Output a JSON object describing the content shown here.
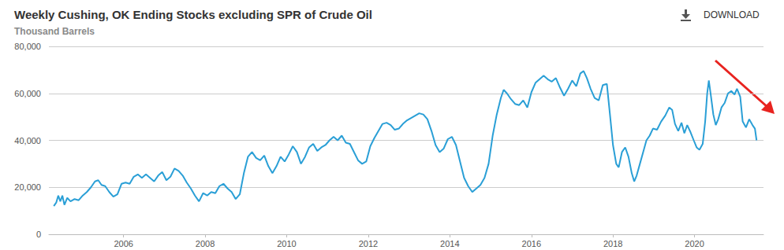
{
  "chart_data": {
    "type": "line",
    "title": "Weekly Cushing, OK Ending Stocks excluding SPR of Crude Oil",
    "subtitle": "Thousand Barrels",
    "annotations": [
      {
        "text": "DOWNLOAD"
      }
    ],
    "color": "#2a9fd6",
    "grid": true,
    "xlim": [
      2004.17,
      2021.69
    ],
    "xticks": [
      2006,
      2008,
      2010,
      2012,
      2014,
      2016,
      2018,
      2020
    ],
    "ylim": [
      0,
      80000
    ],
    "yticks": [
      0,
      {
        "value": 20000,
        "label": "20,000"
      },
      {
        "value": 40000,
        "label": "40,000"
      },
      {
        "value": 60000,
        "label": "60,000"
      },
      {
        "value": 80000,
        "label": "80,000"
      }
    ],
    "x": [
      2004.29,
      2004.35,
      2004.4,
      2004.45,
      2004.5,
      2004.55,
      2004.62,
      2004.7,
      2004.8,
      2004.9,
      2005.0,
      2005.1,
      2005.2,
      2005.3,
      2005.38,
      2005.46,
      2005.55,
      2005.65,
      2005.75,
      2005.85,
      2005.95,
      2006.05,
      2006.15,
      2006.25,
      2006.35,
      2006.45,
      2006.55,
      2006.65,
      2006.75,
      2006.85,
      2006.95,
      2007.05,
      2007.15,
      2007.25,
      2007.35,
      2007.45,
      2007.55,
      2007.65,
      2007.75,
      2007.85,
      2007.95,
      2008.05,
      2008.15,
      2008.25,
      2008.35,
      2008.45,
      2008.55,
      2008.65,
      2008.75,
      2008.85,
      2008.95,
      2009.05,
      2009.15,
      2009.25,
      2009.35,
      2009.45,
      2009.55,
      2009.65,
      2009.75,
      2009.85,
      2009.95,
      2010.05,
      2010.15,
      2010.25,
      2010.35,
      2010.45,
      2010.55,
      2010.65,
      2010.75,
      2010.85,
      2010.95,
      2011.05,
      2011.15,
      2011.25,
      2011.35,
      2011.45,
      2011.55,
      2011.65,
      2011.75,
      2011.85,
      2011.95,
      2012.05,
      2012.15,
      2012.25,
      2012.35,
      2012.45,
      2012.55,
      2012.65,
      2012.75,
      2012.85,
      2012.95,
      2013.05,
      2013.15,
      2013.25,
      2013.35,
      2013.45,
      2013.55,
      2013.65,
      2013.75,
      2013.85,
      2013.95,
      2014.05,
      2014.15,
      2014.25,
      2014.35,
      2014.45,
      2014.55,
      2014.65,
      2014.75,
      2014.85,
      2014.95,
      2015.05,
      2015.15,
      2015.25,
      2015.32,
      2015.4,
      2015.5,
      2015.6,
      2015.7,
      2015.8,
      2015.9,
      2016.0,
      2016.1,
      2016.2,
      2016.3,
      2016.4,
      2016.5,
      2016.6,
      2016.7,
      2016.8,
      2016.9,
      2017.0,
      2017.1,
      2017.2,
      2017.28,
      2017.36,
      2017.45,
      2017.55,
      2017.65,
      2017.75,
      2017.85,
      2017.92,
      2018.0,
      2018.08,
      2018.14,
      2018.22,
      2018.3,
      2018.38,
      2018.46,
      2018.52,
      2018.58,
      2018.66,
      2018.74,
      2018.82,
      2018.9,
      2018.98,
      2019.08,
      2019.18,
      2019.28,
      2019.38,
      2019.45,
      2019.52,
      2019.6,
      2019.68,
      2019.75,
      2019.82,
      2019.9,
      2019.98,
      2020.05,
      2020.12,
      2020.2,
      2020.26,
      2020.31,
      2020.35,
      2020.4,
      2020.46,
      2020.52,
      2020.58,
      2020.66,
      2020.74,
      2020.82,
      2020.9,
      2020.98,
      2021.04,
      2021.12,
      2021.18,
      2021.26,
      2021.34,
      2021.42,
      2021.48,
      2021.52
    ],
    "values": [
      12000,
      13500,
      16500,
      14000,
      16500,
      12500,
      15500,
      14000,
      15000,
      14500,
      16500,
      18000,
      20000,
      22500,
      23000,
      21000,
      20500,
      18000,
      16000,
      17000,
      21500,
      22000,
      21500,
      24500,
      25500,
      24000,
      25500,
      24000,
      22500,
      25000,
      26500,
      23000,
      24500,
      28000,
      27000,
      25000,
      22000,
      19500,
      16500,
      14000,
      17500,
      16500,
      18000,
      17500,
      20500,
      21500,
      19500,
      18000,
      15000,
      17000,
      26000,
      33000,
      35000,
      32500,
      31500,
      33500,
      29000,
      26000,
      29000,
      33000,
      31000,
      34000,
      37500,
      35000,
      30000,
      33000,
      37000,
      38500,
      35500,
      37000,
      38000,
      40000,
      41500,
      40000,
      42000,
      39000,
      38500,
      35000,
      31500,
      30000,
      31000,
      37500,
      41000,
      44000,
      47000,
      47500,
      46500,
      44500,
      45000,
      47000,
      48500,
      49500,
      50500,
      51500,
      51000,
      49000,
      44000,
      38000,
      35000,
      36500,
      40500,
      41500,
      38000,
      31000,
      24000,
      20500,
      18000,
      19500,
      21000,
      24000,
      30000,
      42000,
      51000,
      58000,
      61500,
      60000,
      57500,
      55500,
      55000,
      57000,
      54000,
      60500,
      64500,
      66000,
      67500,
      66000,
      65000,
      66500,
      62500,
      59000,
      62000,
      65500,
      63000,
      68500,
      69500,
      66500,
      62000,
      58000,
      57000,
      63500,
      64000,
      52000,
      38000,
      30000,
      28500,
      35000,
      37000,
      33000,
      26000,
      22500,
      25000,
      30000,
      35000,
      40000,
      42000,
      45000,
      44500,
      48000,
      50500,
      54000,
      53000,
      47000,
      44000,
      47500,
      43000,
      46500,
      43500,
      40000,
      37000,
      36000,
      38500,
      48000,
      60000,
      65500,
      59000,
      51000,
      46500,
      49000,
      54000,
      56000,
      60000,
      61000,
      59500,
      62000,
      58500,
      48000,
      45500,
      49000,
      46500,
      45000,
      40000
    ]
  }
}
